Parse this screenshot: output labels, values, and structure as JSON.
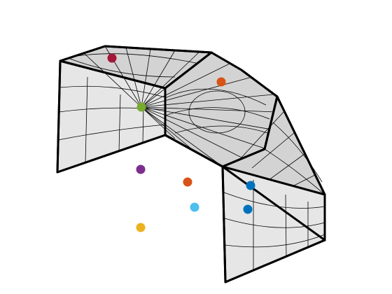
{
  "scene": {
    "background": "#ffffff",
    "surface_fill": "#e6e6e6",
    "roof_fill": "#d3d3d3",
    "line_color": "#000000"
  },
  "points": [
    {
      "id": "crimson",
      "color": "#a5163b"
    },
    {
      "id": "green",
      "color": "#77ac30"
    },
    {
      "id": "orange-upper",
      "color": "#d95319"
    },
    {
      "id": "purple",
      "color": "#7e2f8e"
    },
    {
      "id": "orange-lower",
      "color": "#d95319"
    },
    {
      "id": "blue-upper",
      "color": "#0072bd"
    },
    {
      "id": "sky-blue",
      "color": "#4dbeee"
    },
    {
      "id": "blue-lower",
      "color": "#0072bd"
    },
    {
      "id": "yellow",
      "color": "#edb120"
    }
  ]
}
